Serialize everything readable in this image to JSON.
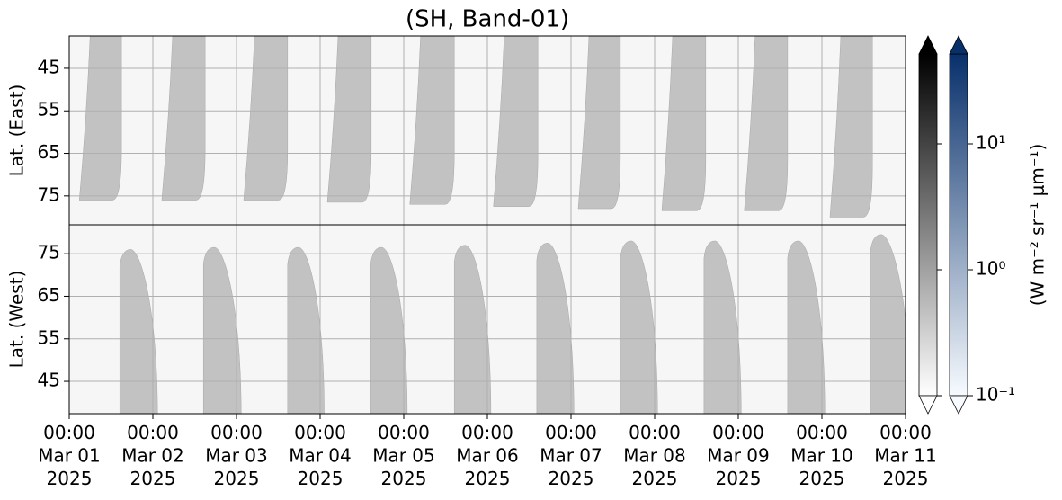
{
  "chart_data": {
    "type": "swath",
    "title": "(SH, Band-01)",
    "xlim": [
      "2025-03-01T00:00",
      "2025-03-11T00:00"
    ],
    "xticks": [
      {
        "value": "2025-03-01T00:00",
        "label": [
          "00:00",
          "Mar 01",
          "2025"
        ]
      },
      {
        "value": "2025-03-02T00:00",
        "label": [
          "00:00",
          "Mar 02",
          "2025"
        ]
      },
      {
        "value": "2025-03-03T00:00",
        "label": [
          "00:00",
          "Mar 03",
          "2025"
        ]
      },
      {
        "value": "2025-03-04T00:00",
        "label": [
          "00:00",
          "Mar 04",
          "2025"
        ]
      },
      {
        "value": "2025-03-05T00:00",
        "label": [
          "00:00",
          "Mar 05",
          "2025"
        ]
      },
      {
        "value": "2025-03-06T00:00",
        "label": [
          "00:00",
          "Mar 06",
          "2025"
        ]
      },
      {
        "value": "2025-03-07T00:00",
        "label": [
          "00:00",
          "Mar 07",
          "2025"
        ]
      },
      {
        "value": "2025-03-08T00:00",
        "label": [
          "00:00",
          "Mar 08",
          "2025"
        ]
      },
      {
        "value": "2025-03-09T00:00",
        "label": [
          "00:00",
          "Mar 09",
          "2025"
        ]
      },
      {
        "value": "2025-03-10T00:00",
        "label": [
          "00:00",
          "Mar 10",
          "2025"
        ]
      },
      {
        "value": "2025-03-11T00:00",
        "label": [
          "00:00",
          "Mar 11",
          "2025"
        ]
      }
    ],
    "grid": true,
    "swath_color": "#c2c2c2",
    "panels": [
      {
        "ylabel": "Lat. (East)",
        "ylim": [
          37.4,
          81.8
        ],
        "y_inverted": true,
        "yticks": [
          45,
          55,
          65,
          75
        ],
        "swaths": {
          "start": [
            "2025-03-01T06:00",
            "2025-03-02T05:40",
            "2025-03-03T05:10",
            "2025-03-04T05:10",
            "2025-03-05T04:50",
            "2025-03-06T04:50",
            "2025-03-07T05:10",
            "2025-03-08T05:10",
            "2025-03-09T04:50",
            "2025-03-10T05:25"
          ],
          "end": [
            "2025-03-01T15:00",
            "2025-03-02T15:00",
            "2025-03-03T14:40",
            "2025-03-04T14:40",
            "2025-03-05T14:30",
            "2025-03-06T14:30",
            "2025-03-07T14:10",
            "2025-03-08T14:40",
            "2025-03-09T14:10",
            "2025-03-10T14:30"
          ],
          "max_lat": [
            76,
            76,
            76,
            76.5,
            77,
            77.5,
            78,
            78.5,
            78.5,
            80
          ]
        }
      },
      {
        "ylabel": "Lat. (West)",
        "ylim": [
          37.4,
          81.8
        ],
        "y_inverted": false,
        "yticks": [
          45,
          55,
          65,
          75
        ],
        "swaths": {
          "start": [
            "2025-03-01T14:30",
            "2025-03-02T14:30",
            "2025-03-03T14:40",
            "2025-03-04T14:30",
            "2025-03-05T14:30",
            "2025-03-06T14:10",
            "2025-03-07T14:10",
            "2025-03-08T14:10",
            "2025-03-09T14:10",
            "2025-03-10T13:55"
          ],
          "end": [
            "2025-03-02T01:20",
            "2025-03-03T01:20",
            "2025-03-04T01:10",
            "2025-03-05T01:00",
            "2025-03-06T01:00",
            "2025-03-07T00:50",
            "2025-03-08T00:50",
            "2025-03-09T00:50",
            "2025-03-10T00:50",
            "2025-03-11T01:20"
          ],
          "max_lat": [
            76,
            76.5,
            76.5,
            76.5,
            77,
            77.5,
            78,
            78,
            78,
            79.5
          ]
        }
      }
    ],
    "colorbar": {
      "log": true,
      "clim": [
        0.1,
        51.8
      ],
      "ticks": [
        {
          "value": 0.1,
          "label": "10⁻¹"
        },
        {
          "value": 1,
          "label": "10⁰"
        },
        {
          "value": 10,
          "label": "10¹"
        }
      ],
      "label": "(W m⁻² sr⁻¹ μm⁻¹)",
      "bars": [
        {
          "colors": [
            "#ffffff",
            "#000000"
          ]
        },
        {
          "colors": [
            "#f7fbff",
            "#08306b"
          ]
        }
      ]
    }
  }
}
